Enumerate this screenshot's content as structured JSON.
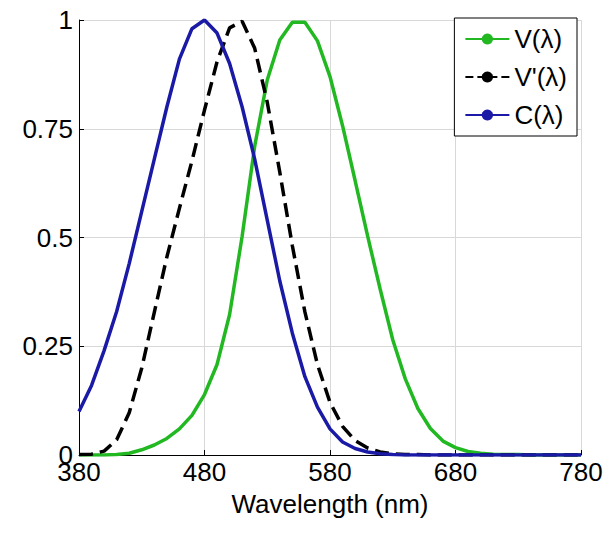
{
  "chart_data": {
    "type": "line",
    "x_label": "Wavelength (nm)",
    "x": [
      380,
      390,
      400,
      410,
      420,
      430,
      440,
      450,
      460,
      470,
      480,
      490,
      500,
      510,
      520,
      530,
      540,
      550,
      560,
      570,
      580,
      590,
      600,
      610,
      620,
      630,
      640,
      650,
      660,
      670,
      680,
      690,
      700,
      710,
      720,
      730,
      740,
      750,
      760,
      770,
      780
    ],
    "xlim": [
      380,
      780
    ],
    "xticks": [
      380,
      480,
      580,
      680,
      780
    ],
    "ylim": [
      0,
      1
    ],
    "yticks": [
      0,
      0.25,
      0.5,
      0.75,
      1
    ],
    "grid": true,
    "legend": "upper right",
    "series": [
      {
        "name": "V(λ)",
        "color": "#22b822",
        "line_style": "solid",
        "marker": "none",
        "values": [
          0.0,
          0.0,
          0.0,
          0.001,
          0.004,
          0.012,
          0.023,
          0.038,
          0.06,
          0.091,
          0.139,
          0.208,
          0.323,
          0.503,
          0.71,
          0.862,
          0.954,
          0.995,
          0.995,
          0.952,
          0.87,
          0.757,
          0.631,
          0.503,
          0.381,
          0.265,
          0.175,
          0.107,
          0.061,
          0.032,
          0.017,
          0.008,
          0.004,
          0.002,
          0.001,
          0.001,
          0.0,
          0.0,
          0.0,
          0.0,
          0.0
        ]
      },
      {
        "name": "V'(λ)",
        "color": "#000000",
        "line_style": "dashed",
        "marker": "none",
        "values": [
          0.001,
          0.002,
          0.009,
          0.035,
          0.097,
          0.2,
          0.328,
          0.455,
          0.567,
          0.676,
          0.793,
          0.904,
          0.982,
          0.997,
          0.935,
          0.811,
          0.65,
          0.481,
          0.329,
          0.208,
          0.121,
          0.066,
          0.033,
          0.016,
          0.007,
          0.003,
          0.001,
          0.001,
          0.0,
          0.0,
          0.0,
          0.0,
          0.0,
          0.0,
          0.0,
          0.0,
          0.0,
          0.0,
          0.0,
          0.0,
          0.0
        ]
      },
      {
        "name": "C(λ)",
        "color": "#1a1aa6",
        "line_style": "solid",
        "marker": "none",
        "values": [
          0.1,
          0.16,
          0.24,
          0.33,
          0.44,
          0.56,
          0.68,
          0.8,
          0.91,
          0.98,
          1.0,
          0.97,
          0.9,
          0.8,
          0.68,
          0.54,
          0.4,
          0.28,
          0.18,
          0.11,
          0.06,
          0.03,
          0.015,
          0.007,
          0.003,
          0.001,
          0,
          0,
          0,
          0,
          0,
          0,
          0,
          0,
          0,
          0,
          0,
          0,
          0,
          0,
          0
        ]
      }
    ]
  }
}
